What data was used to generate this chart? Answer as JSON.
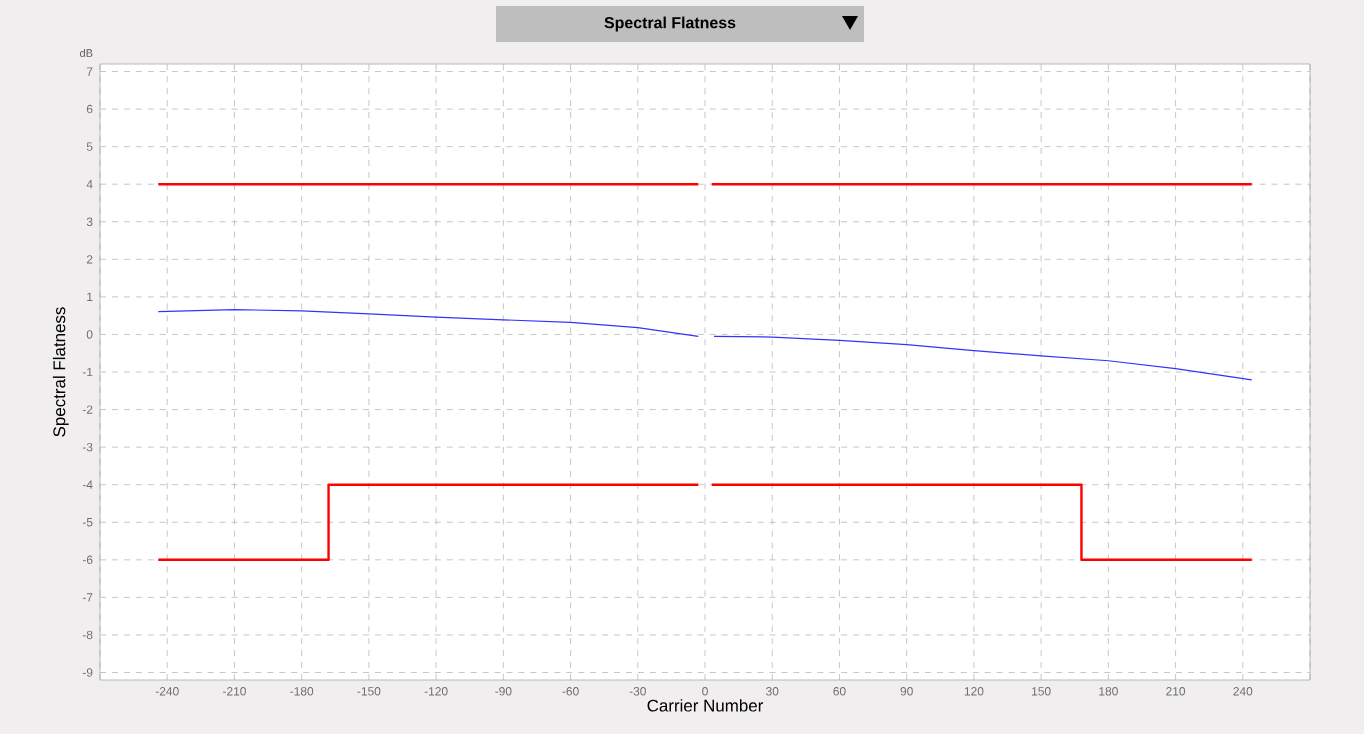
{
  "chart_data": {
    "type": "line",
    "title": "Spectral Flatness",
    "xlabel": "Carrier Number",
    "ylabel": "Spectral Flatness",
    "annotations": [
      "dB"
    ],
    "xlim": [
      -270,
      270
    ],
    "ylim": [
      -9.2,
      7.2
    ],
    "xticks": [
      {
        "value": -270,
        "label": null
      },
      -240,
      -210,
      -180,
      -150,
      -120,
      -90,
      -60,
      -30,
      0,
      30,
      60,
      90,
      120,
      150,
      180,
      210,
      240,
      {
        "value": 270,
        "label": null
      }
    ],
    "yticks": [
      -9,
      -8,
      -7,
      -6,
      -5,
      -4,
      -3,
      -2,
      -1,
      0,
      1,
      2,
      3,
      4,
      5,
      6,
      7
    ],
    "grid": true,
    "series": [
      {
        "color": "#ff0000",
        "x": [
          -244,
          -3,
          0,
          3,
          244
        ],
        "values": [
          4,
          4,
          null,
          4,
          4
        ]
      },
      {
        "color": "#ff0000",
        "x": [
          -244,
          -168,
          -168,
          -3,
          0,
          3,
          168,
          168,
          244
        ],
        "values": [
          -6,
          -6,
          -4,
          -4,
          null,
          -4,
          -4,
          -6,
          -6
        ]
      },
      {
        "color": "#3333ff",
        "x": [
          -244,
          -210,
          -180,
          -150,
          -120,
          -90,
          -60,
          -30,
          -3,
          0,
          4,
          30,
          60,
          90,
          120,
          150,
          180,
          210,
          244
        ],
        "values": [
          0.61,
          0.66,
          0.63,
          0.55,
          0.46,
          0.39,
          0.32,
          0.18,
          -0.05,
          null,
          -0.05,
          -0.07,
          -0.16,
          -0.27,
          -0.43,
          -0.57,
          -0.7,
          -0.91,
          -1.21
        ]
      }
    ]
  }
}
